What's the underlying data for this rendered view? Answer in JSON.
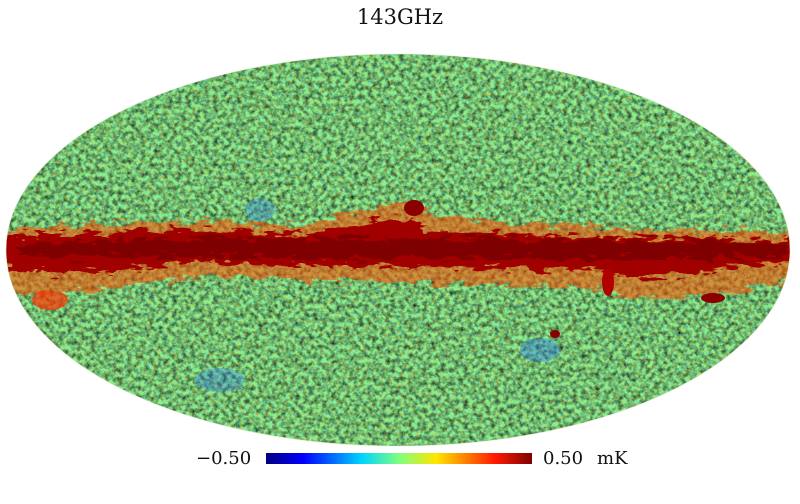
{
  "title": "143GHz",
  "projection": "mollweide",
  "colormap": [
    "#00007f",
    "#0000ff",
    "#00bfff",
    "#40ffbf",
    "#bfff40",
    "#ffd700",
    "#ff4000",
    "#7f0000"
  ],
  "colorbar": {
    "min_label": "−0.50",
    "max_label": "0.50",
    "unit": "mK",
    "range": [
      -0.5,
      0.5
    ]
  },
  "features": {
    "galactic_plane": "saturated dark red band along equator",
    "background": "cyan-green-yellow CMB fluctuations"
  }
}
